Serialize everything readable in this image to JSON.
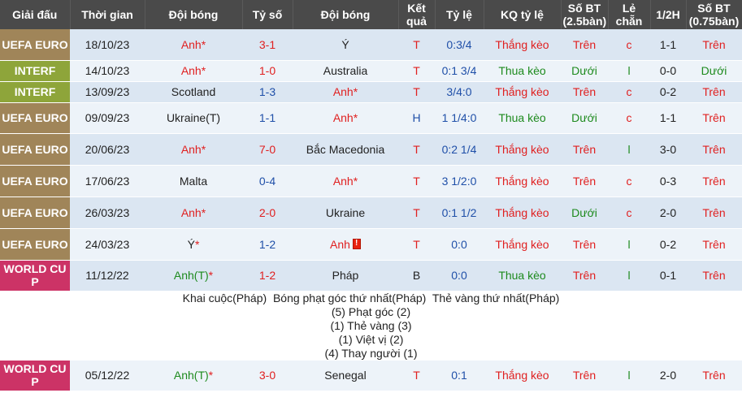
{
  "headers": {
    "league": "Giải đấu",
    "time": "Thời gian",
    "home": "Đội bóng",
    "score": "Tỷ số",
    "away": "Đội bóng",
    "result": "Kết quả",
    "odds": "Tỷ lệ",
    "odds_result": "KQ tỷ lệ",
    "ou": "Số BT (2.5bàn)",
    "oddeven": "Lẻ chẵn",
    "half": "1/2H",
    "ou75": "Số BT (0.75bàn)"
  },
  "matches": [
    {
      "league": "UEFA EURO",
      "time": "18/10/23",
      "home": "Anh",
      "home_star": "*",
      "score": "3-1",
      "away": "Ý",
      "away_star": "",
      "result": "T",
      "odds": "0:3/4",
      "odds_result": "Thắng kèo",
      "ou": "Trên",
      "oddeven": "c",
      "half": "1-1",
      "ou75": "Trên"
    },
    {
      "league": "INTERF",
      "time": "14/10/23",
      "home": "Anh",
      "home_star": "*",
      "score": "1-0",
      "away": "Australia",
      "away_star": "",
      "result": "T",
      "odds": "0:1 3/4",
      "odds_result": "Thua kèo",
      "ou": "Dưới",
      "oddeven": "l",
      "half": "0-0",
      "ou75": "Dưới"
    },
    {
      "league": "INTERF",
      "time": "13/09/23",
      "home": "Scotland",
      "home_star": "",
      "score": "1-3",
      "away": "Anh",
      "away_star": "*",
      "result": "T",
      "odds": "3/4:0",
      "odds_result": "Thắng kèo",
      "ou": "Trên",
      "oddeven": "c",
      "half": "0-2",
      "ou75": "Trên"
    },
    {
      "league": "UEFA EURO",
      "time": "09/09/23",
      "home": "Ukraine(T)",
      "home_star": "",
      "score": "1-1",
      "away": "Anh",
      "away_star": "*",
      "result": "H",
      "odds": "1 1/4:0",
      "odds_result": "Thua kèo",
      "ou": "Dưới",
      "oddeven": "c",
      "half": "1-1",
      "ou75": "Trên"
    },
    {
      "league": "UEFA EURO",
      "time": "20/06/23",
      "home": "Anh",
      "home_star": "*",
      "score": "7-0",
      "away": "Bắc Macedonia",
      "away_star": "",
      "result": "T",
      "odds": "0:2 1/4",
      "odds_result": "Thắng kèo",
      "ou": "Trên",
      "oddeven": "l",
      "half": "3-0",
      "ou75": "Trên"
    },
    {
      "league": "UEFA EURO",
      "time": "17/06/23",
      "home": "Malta",
      "home_star": "",
      "score": "0-4",
      "away": "Anh",
      "away_star": "*",
      "result": "T",
      "odds": "3 1/2:0",
      "odds_result": "Thắng kèo",
      "ou": "Trên",
      "oddeven": "c",
      "half": "0-3",
      "ou75": "Trên"
    },
    {
      "league": "UEFA EURO",
      "time": "26/03/23",
      "home": "Anh",
      "home_star": "*",
      "score": "2-0",
      "away": "Ukraine",
      "away_star": "",
      "result": "T",
      "odds": "0:1 1/2",
      "odds_result": "Thắng kèo",
      "ou": "Dưới",
      "oddeven": "c",
      "half": "2-0",
      "ou75": "Trên"
    },
    {
      "league": "UEFA EURO",
      "time": "24/03/23",
      "home": "Ý",
      "home_star": "*",
      "score": "1-2",
      "away": "Anh",
      "away_star": "",
      "away_card": true,
      "result": "T",
      "odds": "0:0",
      "odds_result": "Thắng kèo",
      "ou": "Trên",
      "oddeven": "l",
      "half": "0-2",
      "ou75": "Trên"
    },
    {
      "league": "WORLD CUP",
      "time": "11/12/22",
      "home": "Anh(T)",
      "home_star": "*",
      "score": "1-2",
      "away": "Pháp",
      "away_star": "",
      "result": "B",
      "odds": "0:0",
      "odds_result": "Thua kèo",
      "ou": "Trên",
      "oddeven": "l",
      "half": "0-1",
      "ou75": "Trên"
    }
  ],
  "detail": {
    "heading": "Khai cuộc(Pháp)  Bóng phạt góc thứ nhất(Pháp)  Thẻ vàng thứ nhất(Pháp)",
    "lines": [
      "(5) Phạt góc (2)",
      "(1) Thẻ vàng (3)",
      "(1) Việt vị (2)",
      "(4) Thay người (1)"
    ]
  },
  "last_match": {
    "league": "WORLD CUP",
    "time": "05/12/22",
    "home": "Anh(T)",
    "home_star": "*",
    "score": "3-0",
    "away": "Senegal",
    "away_star": "",
    "result": "T",
    "odds": "0:1",
    "odds_result": "Thắng kèo",
    "ou": "Trên",
    "oddeven": "l",
    "half": "2-0",
    "ou75": "Trên"
  },
  "colors": {
    "red": "#e02020",
    "green": "#1d8a1d",
    "euro": "#a08559",
    "interf": "#8ea53a",
    "worldcup": "#cc3366"
  }
}
